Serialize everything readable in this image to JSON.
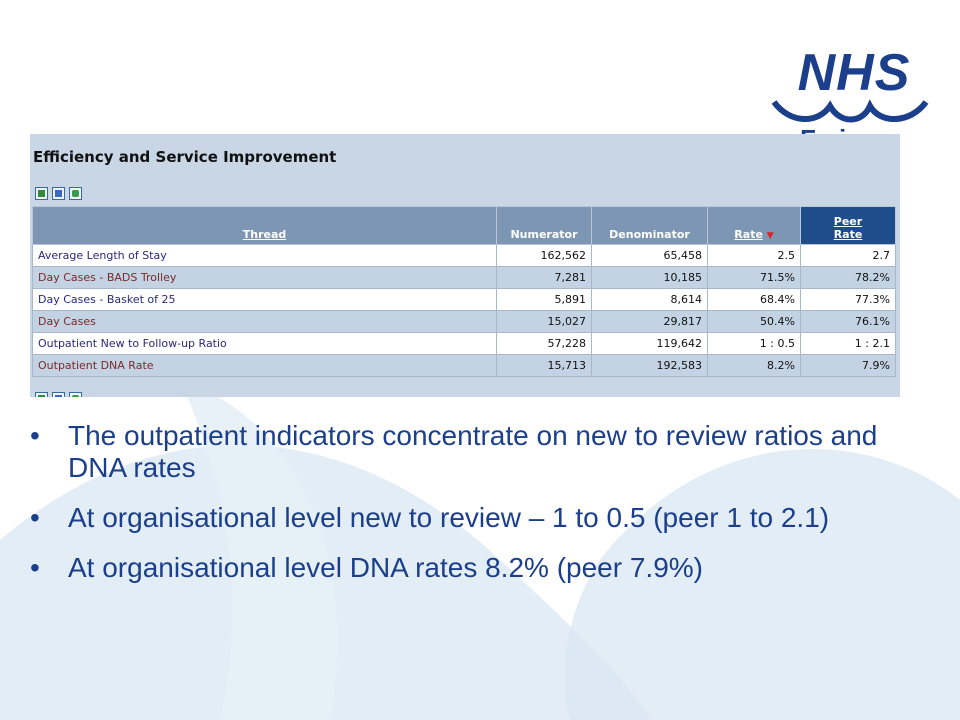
{
  "logo": {
    "text": "NHS",
    "subtext": "Fo i",
    "color": "#1b3f8b"
  },
  "report": {
    "title": "Efficiency and Service Improvement",
    "export_icons": [
      "excel-icon",
      "word-icon",
      "csv-icon"
    ],
    "columns": {
      "thread": "Thread",
      "numerator": "Numerator",
      "denominator": "Denominator",
      "rate": "Rate",
      "peer_rate_line1": "Peer",
      "peer_rate_line2": "Rate"
    },
    "rows": [
      {
        "thread": "Average Length of Stay",
        "numerator": "162,562",
        "denominator": "65,458",
        "rate": "2.5",
        "peer_rate": "2.7"
      },
      {
        "thread": "Day Cases - BADS Trolley",
        "numerator": "7,281",
        "denominator": "10,185",
        "rate": "71.5%",
        "peer_rate": "78.2%"
      },
      {
        "thread": "Day Cases - Basket of 25",
        "numerator": "5,891",
        "denominator": "8,614",
        "rate": "68.4%",
        "peer_rate": "77.3%"
      },
      {
        "thread": "Day Cases",
        "numerator": "15,027",
        "denominator": "29,817",
        "rate": "50.4%",
        "peer_rate": "76.1%"
      },
      {
        "thread": "Outpatient New to Follow-up Ratio",
        "numerator": "57,228",
        "denominator": "119,642",
        "rate": "1 : 0.5",
        "peer_rate": "1 : 2.1"
      },
      {
        "thread": "Outpatient DNA Rate",
        "numerator": "15,713",
        "denominator": "192,583",
        "rate": "8.2%",
        "peer_rate": "7.9%"
      }
    ]
  },
  "bullets": [
    "The outpatient indicators concentrate on new to review ratios and DNA rates",
    "At organisational level new to review – 1 to 0.5 (peer 1 to 2.1)",
    "At organisational level DNA rates 8.2% (peer 7.9%)"
  ],
  "colors": {
    "text": "#1b3f8b",
    "header": "#7d96b3",
    "peer_header": "#1f4d8c",
    "panel": "#c8d6e6"
  }
}
